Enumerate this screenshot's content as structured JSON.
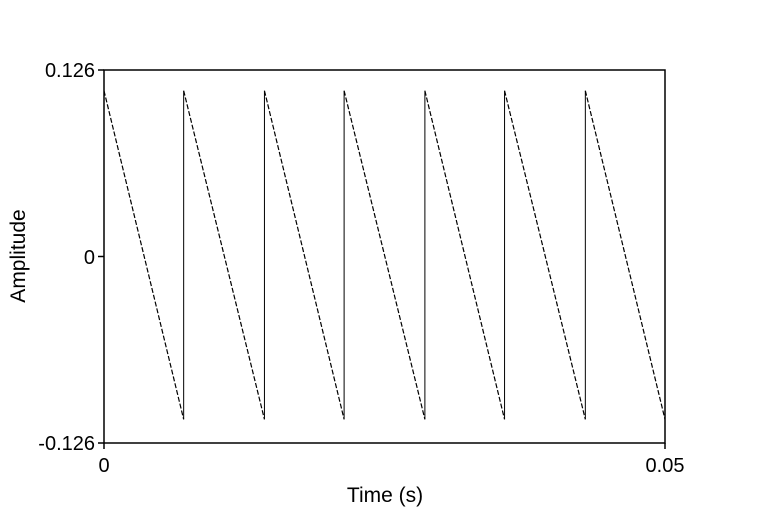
{
  "chart_data": {
    "type": "line",
    "title": "",
    "xlabel": "Time (s)",
    "ylabel": "Amplitude",
    "xlim": [
      0,
      0.05
    ],
    "ylim": [
      -0.126,
      0.126
    ],
    "x_ticks": [
      "0",
      "0.05"
    ],
    "y_ticks": [
      "0.126",
      "0",
      "-0.126"
    ],
    "grid": false,
    "legend": "none",
    "line_color": "#000000",
    "series": [
      {
        "style": "dashed sawtooth (ramp down then near-vertical jump)",
        "x": [
          0.0,
          0.0071,
          0.0071,
          0.0143,
          0.0143,
          0.0214,
          0.0214,
          0.0286,
          0.0286,
          0.0357,
          0.0357,
          0.0429,
          0.0429,
          0.05
        ],
        "y": [
          0.112,
          -0.11,
          0.112,
          -0.11,
          0.112,
          -0.11,
          0.112,
          -0.11,
          0.112,
          -0.11,
          0.112,
          -0.11,
          0.112,
          -0.11
        ]
      }
    ]
  }
}
